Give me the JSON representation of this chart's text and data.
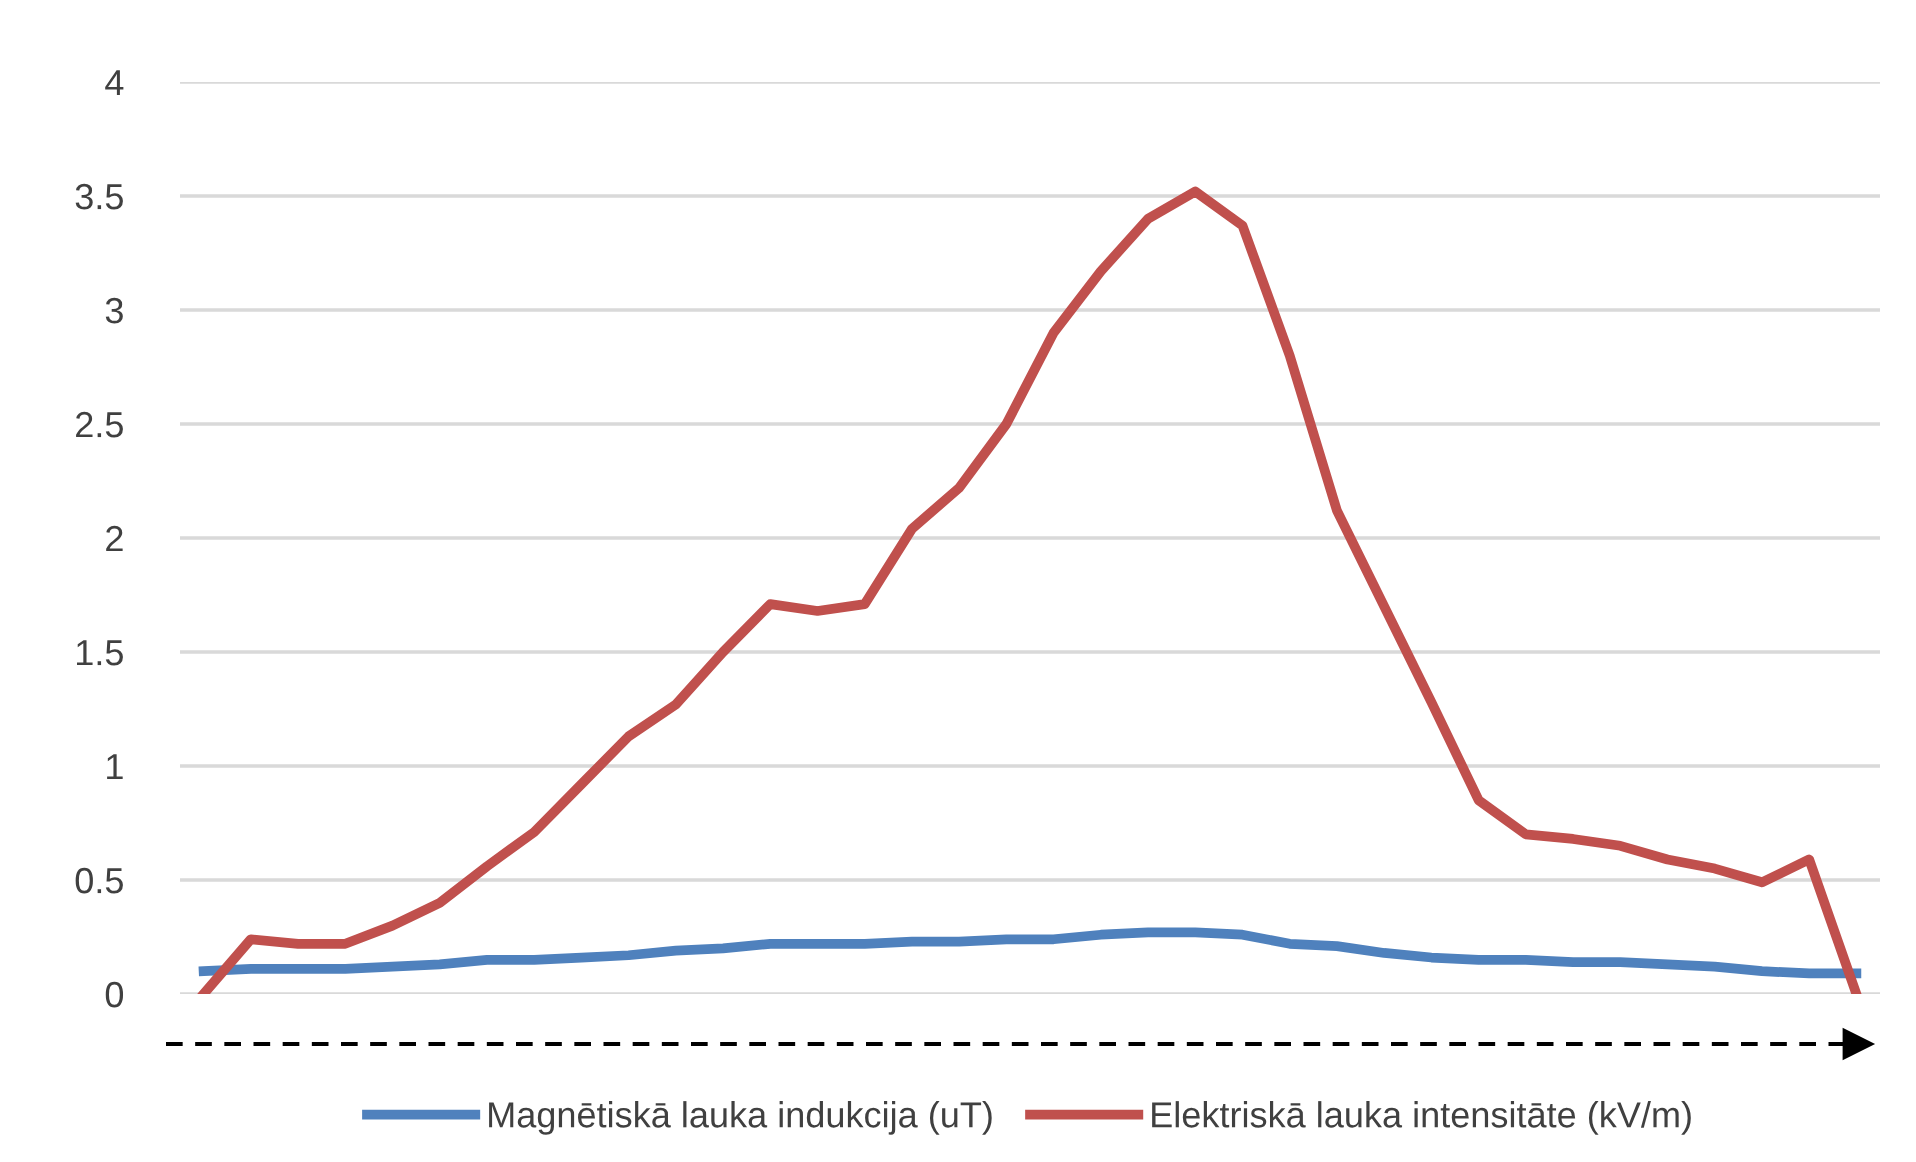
{
  "chart_data": {
    "type": "line",
    "categories": [
      null,
      null,
      null,
      null,
      null,
      null,
      null,
      null,
      null,
      null,
      null,
      null,
      null,
      null,
      null,
      null,
      null,
      null,
      null,
      null,
      null,
      null,
      null,
      null,
      null,
      null,
      null,
      null,
      null,
      null,
      null,
      null,
      null,
      null,
      null,
      null
    ],
    "series": [
      {
        "name": "Magnētiskā lauka indukcija (uT)",
        "color": "#4f81bd",
        "values": [
          0.1,
          0.11,
          0.11,
          0.11,
          0.12,
          0.13,
          0.15,
          0.15,
          0.16,
          0.17,
          0.19,
          0.2,
          0.22,
          0.22,
          0.22,
          0.23,
          0.23,
          0.24,
          0.24,
          0.26,
          0.27,
          0.27,
          0.26,
          0.22,
          0.21,
          0.18,
          0.16,
          0.15,
          0.15,
          0.14,
          0.14,
          0.13,
          0.12,
          0.1,
          0.09,
          0.09
        ]
      },
      {
        "name": "Elektriskā lauka intensitāte (kV/m)",
        "color": "#c0504d",
        "values": [
          0,
          0.24,
          0.22,
          0.22,
          0.3,
          0.4,
          0.56,
          0.71,
          0.92,
          1.13,
          1.27,
          1.5,
          1.71,
          1.68,
          1.71,
          2.04,
          2.22,
          2.5,
          2.9,
          3.17,
          3.4,
          3.52,
          3.37,
          2.8,
          2.12,
          1.7,
          1.28,
          0.85,
          0.7,
          0.68,
          0.65,
          0.59,
          0.55,
          0.49,
          0.59,
          0
        ]
      }
    ],
    "ylim": [
      0,
      4
    ],
    "yticks": [
      0,
      0.5,
      1,
      1.5,
      2,
      2.5,
      3,
      3.5,
      4
    ],
    "grid": "y",
    "legend": "bottom",
    "marker": "none",
    "line_style": "solid",
    "tick_labels": "y"
  }
}
